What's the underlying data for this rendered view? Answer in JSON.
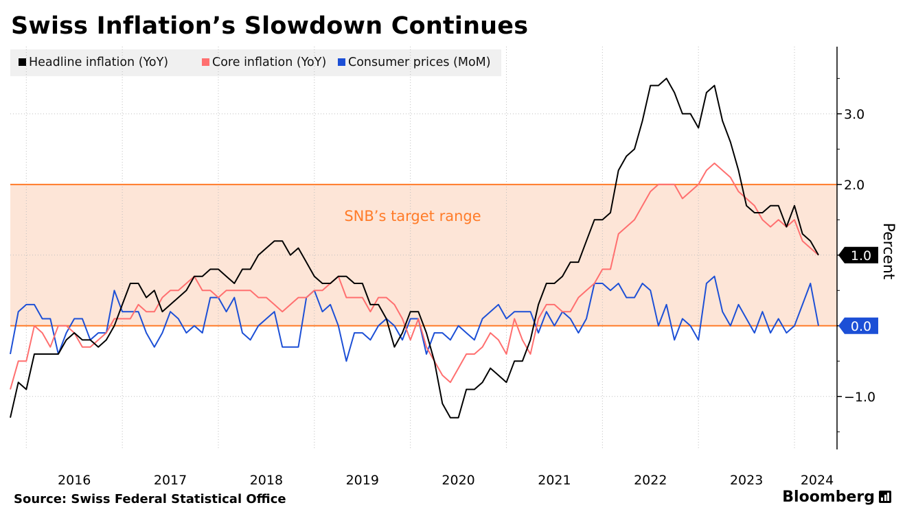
{
  "title": "Swiss Inflation’s Slowdown Continues",
  "source": "Source: Swiss Federal Statistical Office",
  "brand": "Bloomberg",
  "brand_icon": "bloomberg-chart-icon",
  "chart_data": {
    "type": "line",
    "title": "Swiss Inflation’s Slowdown Continues",
    "ylabel": "Percent",
    "xlabel": "",
    "x_start": "2015-11",
    "x_ticks": [
      "2016",
      "2017",
      "2018",
      "2019",
      "2020",
      "2021",
      "2022",
      "2023",
      "2024"
    ],
    "ylim": [
      -1.75,
      3.95
    ],
    "y_ticks": [
      "3.0",
      "2.0",
      "1.0",
      "0.0",
      "-1.0"
    ],
    "grid": true,
    "legend_position": "top-left",
    "band": {
      "from": 0.0,
      "to": 2.0,
      "label": "SNB’s target range",
      "color": "#fde5d7",
      "line_color": "#ff7b28",
      "label_color": "#ff7b28"
    },
    "last_value_labels": [
      {
        "value": 1.0,
        "label": "1.0",
        "color": "#000000"
      },
      {
        "value": 0.0,
        "label": "0.0",
        "color": "#1c4fd6"
      }
    ],
    "series": [
      {
        "name": "Headline inflation (YoY)",
        "color": "#000000",
        "values": [
          -1.3,
          -0.8,
          -0.9,
          -0.4,
          -0.4,
          -0.4,
          -0.4,
          -0.2,
          -0.1,
          -0.2,
          -0.2,
          -0.3,
          -0.2,
          0.0,
          0.3,
          0.6,
          0.6,
          0.4,
          0.5,
          0.2,
          0.3,
          0.4,
          0.5,
          0.7,
          0.7,
          0.8,
          0.8,
          0.7,
          0.6,
          0.8,
          0.8,
          1.0,
          1.1,
          1.2,
          1.2,
          1.0,
          1.1,
          0.9,
          0.7,
          0.6,
          0.6,
          0.7,
          0.7,
          0.6,
          0.6,
          0.3,
          0.3,
          0.1,
          -0.3,
          -0.1,
          0.2,
          0.2,
          -0.1,
          -0.5,
          -1.1,
          -1.3,
          -1.3,
          -0.9,
          -0.9,
          -0.8,
          -0.6,
          -0.7,
          -0.8,
          -0.5,
          -0.5,
          -0.2,
          0.3,
          0.6,
          0.6,
          0.7,
          0.9,
          0.9,
          1.2,
          1.5,
          1.5,
          1.6,
          2.2,
          2.4,
          2.5,
          2.9,
          3.4,
          3.4,
          3.5,
          3.3,
          3.0,
          3.0,
          2.8,
          3.3,
          3.4,
          2.9,
          2.6,
          2.2,
          1.7,
          1.6,
          1.6,
          1.7,
          1.7,
          1.4,
          1.7,
          1.3,
          1.2,
          1.0
        ]
      },
      {
        "name": "Core inflation (YoY)",
        "color": "#ff6f6f",
        "values": [
          -0.9,
          -0.5,
          -0.5,
          0.0,
          -0.1,
          -0.3,
          0.0,
          0.0,
          -0.1,
          -0.3,
          -0.3,
          -0.2,
          -0.1,
          0.1,
          0.1,
          0.1,
          0.3,
          0.2,
          0.2,
          0.4,
          0.5,
          0.5,
          0.6,
          0.7,
          0.5,
          0.5,
          0.4,
          0.5,
          0.5,
          0.5,
          0.5,
          0.4,
          0.4,
          0.3,
          0.2,
          0.3,
          0.4,
          0.4,
          0.5,
          0.5,
          0.6,
          0.7,
          0.4,
          0.4,
          0.4,
          0.2,
          0.4,
          0.4,
          0.3,
          0.1,
          -0.2,
          0.1,
          -0.3,
          -0.5,
          -0.7,
          -0.8,
          -0.6,
          -0.4,
          -0.4,
          -0.3,
          -0.1,
          -0.2,
          -0.4,
          0.1,
          -0.2,
          -0.4,
          0.1,
          0.3,
          0.3,
          0.2,
          0.2,
          0.4,
          0.5,
          0.6,
          0.8,
          0.8,
          1.3,
          1.4,
          1.5,
          1.7,
          1.9,
          2.0,
          2.0,
          2.0,
          1.8,
          1.9,
          2.0,
          2.2,
          2.3,
          2.2,
          2.1,
          1.9,
          1.8,
          1.7,
          1.5,
          1.4,
          1.5,
          1.4,
          1.5,
          1.2,
          1.1,
          1.0
        ]
      },
      {
        "name": "Consumer prices (MoM)",
        "color": "#1c4fd6",
        "values": [
          -0.4,
          0.2,
          0.3,
          0.3,
          0.1,
          0.1,
          -0.4,
          -0.1,
          0.1,
          0.1,
          -0.2,
          -0.1,
          -0.1,
          0.5,
          0.2,
          0.2,
          0.2,
          -0.1,
          -0.3,
          -0.1,
          0.2,
          0.1,
          -0.1,
          0.0,
          -0.1,
          0.4,
          0.4,
          0.2,
          0.4,
          -0.1,
          -0.2,
          0.0,
          0.1,
          0.2,
          -0.3,
          -0.3,
          -0.3,
          0.4,
          0.5,
          0.2,
          0.3,
          0.0,
          -0.5,
          -0.1,
          -0.1,
          -0.2,
          0.0,
          0.1,
          0.0,
          -0.2,
          0.1,
          0.1,
          -0.4,
          -0.1,
          -0.1,
          -0.2,
          0.0,
          -0.1,
          -0.2,
          0.1,
          0.2,
          0.3,
          0.1,
          0.2,
          0.2,
          0.2,
          -0.1,
          0.2,
          0.0,
          0.2,
          0.1,
          -0.1,
          0.1,
          0.6,
          0.6,
          0.5,
          0.6,
          0.4,
          0.4,
          0.6,
          0.5,
          0.0,
          0.3,
          -0.2,
          0.1,
          0.0,
          -0.2,
          0.6,
          0.7,
          0.2,
          0.0,
          0.3,
          0.1,
          -0.1,
          0.2,
          -0.1,
          0.1,
          -0.1,
          0.0,
          0.3,
          0.6,
          0.0
        ]
      }
    ]
  }
}
